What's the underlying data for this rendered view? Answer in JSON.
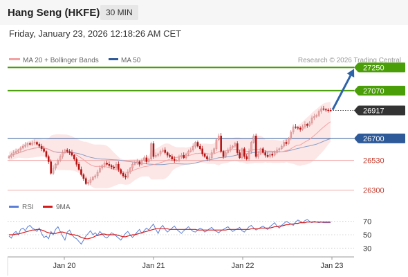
{
  "header": {
    "instrument": "Hang Seng (HKFE)",
    "interval": "30 MIN",
    "datetime": "Friday, January 23, 2026 12:18:26 AM CET"
  },
  "legend": {
    "ma20": "MA 20 + Bollinger Bands",
    "ma50": "MA 50",
    "rsi": "RSI",
    "ma9": "9MA"
  },
  "attribution": "Research © 2026 Trading Central",
  "colors": {
    "candle_up": "#f2a8a8",
    "candle_down": "#b51212",
    "support_resistance_line": "#f0a6a6",
    "target_line": "#4a9e08",
    "pivot_line": "#2e5a99",
    "ma20": "#f3a1a1",
    "ma50": "#8aa0c6",
    "bollinger_fill": "#fde6e6",
    "rsi": "#5b7fd6",
    "rsi_ma": "#d61a1a",
    "arrow": "#2e63a8",
    "current_price_label": "#333333"
  },
  "chart_data": [
    {
      "type": "candlestick",
      "x_ticks": [
        "Jan 20",
        "Jan 21",
        "Jan 22",
        "Jan 23"
      ],
      "y_range": [
        26260,
        27300
      ],
      "levels": [
        {
          "value": 27250,
          "label": "27250",
          "kind": "target"
        },
        {
          "value": 27070,
          "label": "27070",
          "kind": "target"
        },
        {
          "value": 26917,
          "label": "26917",
          "kind": "current"
        },
        {
          "value": 26700,
          "label": "26700",
          "kind": "pivot"
        },
        {
          "value": 26530,
          "label": "26530",
          "kind": "support"
        },
        {
          "value": 26300,
          "label": "26300",
          "kind": "support"
        }
      ],
      "projection_arrow": {
        "from": 26917,
        "to": 27250
      },
      "series": [
        {
          "name": "Hang Seng (HKFE)",
          "close": [
            26560,
            26575,
            26590,
            26600,
            26610,
            26625,
            26640,
            26650,
            26660,
            26655,
            26665,
            26670,
            26655,
            26640,
            26620,
            26600,
            26560,
            26520,
            26430,
            26470,
            26500,
            26530,
            26560,
            26590,
            26610,
            26600,
            26590,
            26570,
            26540,
            26500,
            26460,
            26420,
            26390,
            26350,
            26360,
            26380,
            26400,
            26410,
            26440,
            26470,
            26490,
            26510,
            26500,
            26490,
            26480,
            26470,
            26500,
            26460,
            26430,
            26410,
            26400,
            26440,
            26470,
            26500,
            26510,
            26520,
            26500,
            26530,
            26550,
            26520,
            26540,
            26660,
            26560,
            26570,
            26580,
            26600,
            26610,
            26590,
            26570,
            26560,
            26540,
            26530,
            26530,
            26560,
            26570,
            26550,
            26580,
            26600,
            26610,
            26640,
            26670,
            26640,
            26620,
            26580,
            26560,
            26540,
            26550,
            26590,
            26620,
            26690,
            26720,
            26600,
            26560,
            26590,
            26610,
            26630,
            26640,
            26660,
            26590,
            26550,
            26620,
            26560,
            26540,
            26600,
            26670,
            26720,
            26560,
            26580,
            26620,
            26590,
            26570,
            26560,
            26580,
            26570,
            26590,
            26610,
            26620,
            26640,
            26670,
            26660,
            26700,
            26750,
            26790,
            26785,
            26780,
            26770,
            26790,
            26810,
            26800,
            26820,
            26860,
            26870,
            26880,
            26910,
            26930,
            26925,
            26920,
            26918,
            26917
          ]
        }
      ]
    },
    {
      "type": "line",
      "name": "RSI",
      "x_ticks": [
        "Jan 20",
        "Jan 21",
        "Jan 22",
        "Jan 23"
      ],
      "y_ticks": [
        30,
        50,
        70
      ],
      "y_range": [
        20,
        80
      ],
      "series": [
        {
          "name": "RSI",
          "values": [
            48,
            45,
            52,
            55,
            50,
            58,
            60,
            56,
            62,
            64,
            60,
            58,
            55,
            60,
            52,
            46,
            48,
            44,
            55,
            50,
            58,
            62,
            55,
            48,
            42,
            54,
            57,
            50,
            46,
            44,
            40,
            36,
            42,
            48,
            52,
            56,
            50,
            53,
            49,
            55,
            51,
            47,
            45,
            49,
            53,
            51,
            48,
            45,
            42,
            47,
            52,
            55,
            50,
            46,
            50,
            54,
            58,
            52,
            56,
            60,
            57,
            62,
            66,
            58,
            52,
            60,
            64,
            58,
            54,
            57,
            60,
            63,
            58,
            55,
            52,
            56,
            59,
            62,
            58,
            55,
            54,
            57,
            60,
            58,
            54,
            56,
            59,
            61,
            57,
            55,
            53,
            56,
            58,
            60,
            62,
            58,
            55,
            57,
            59,
            61,
            56,
            54,
            58,
            62,
            64,
            60,
            57,
            59,
            61,
            63,
            60,
            58,
            62,
            65,
            68,
            63,
            60,
            64,
            67,
            70,
            68,
            66,
            64,
            69,
            72,
            70,
            68,
            71,
            73,
            70,
            68,
            70,
            69,
            68,
            69,
            68,
            68,
            68,
            68
          ]
        },
        {
          "name": "9MA",
          "values": [
            50,
            50,
            50,
            51,
            51,
            52,
            53,
            54,
            55,
            56,
            57,
            57,
            58,
            58,
            57,
            56,
            54,
            53,
            52,
            52,
            52,
            53,
            54,
            54,
            53,
            52,
            51,
            50,
            50,
            49,
            48,
            46,
            45,
            44,
            44,
            45,
            46,
            48,
            49,
            50,
            51,
            51,
            50,
            50,
            50,
            50,
            50,
            49,
            48,
            47,
            47,
            48,
            49,
            50,
            50,
            51,
            52,
            53,
            54,
            55,
            56,
            57,
            58,
            59,
            59,
            59,
            59,
            59,
            59,
            58,
            58,
            58,
            58,
            58,
            58,
            58,
            58,
            58,
            58,
            58,
            58,
            57,
            57,
            57,
            57,
            57,
            57,
            57,
            57,
            57,
            57,
            57,
            57,
            57,
            58,
            58,
            58,
            58,
            58,
            58,
            58,
            58,
            58,
            58,
            59,
            59,
            59,
            59,
            60,
            60,
            60,
            60,
            60,
            61,
            62,
            62,
            63,
            63,
            64,
            65,
            65,
            66,
            66,
            67,
            67,
            68,
            68,
            68,
            69,
            69,
            69,
            69,
            69,
            69,
            69,
            69,
            69,
            69,
            69
          ]
        }
      ]
    }
  ]
}
